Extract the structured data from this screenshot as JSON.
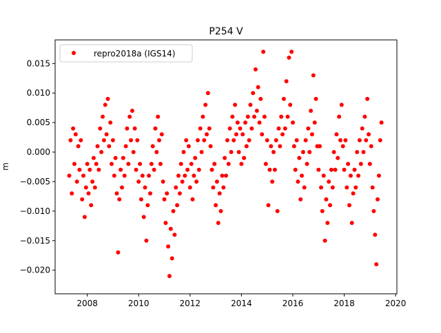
{
  "chart_data": {
    "type": "scatter",
    "title": "P254 V",
    "xlabel": "",
    "ylabel": "m",
    "xlim": [
      2006.75,
      2020.05
    ],
    "ylim": [
      -0.024,
      0.019
    ],
    "xticks": [
      2008,
      2010,
      2012,
      2014,
      2016,
      2018,
      2020
    ],
    "xtick_labels": [
      "2008",
      "2010",
      "2012",
      "2014",
      "2016",
      "2018",
      "2020"
    ],
    "yticks": [
      0.015,
      0.01,
      0.005,
      0.0,
      -0.005,
      -0.01,
      -0.015,
      -0.02
    ],
    "ytick_labels": [
      "0.015",
      "0.010",
      "0.005",
      "0.000",
      "−0.005",
      "−0.010",
      "−0.015",
      "−0.020"
    ],
    "grid": false,
    "legend_position": "top-left",
    "series": [
      {
        "name": "repro2018a (IGS14)",
        "color": "#ff0000",
        "marker": "circle",
        "points": [
          [
            2007.3,
            -0.004
          ],
          [
            2007.35,
            0.002
          ],
          [
            2007.4,
            -0.007
          ],
          [
            2007.45,
            0.004
          ],
          [
            2007.5,
            -0.002
          ],
          [
            2007.55,
            0.003
          ],
          [
            2007.6,
            -0.005
          ],
          [
            2007.65,
            0.001
          ],
          [
            2007.7,
            -0.003
          ],
          [
            2007.75,
            0.002
          ],
          [
            2007.8,
            -0.008
          ],
          [
            2007.85,
            -0.004
          ],
          [
            2007.9,
            -0.011
          ],
          [
            2007.95,
            -0.006
          ],
          [
            2008.0,
            -0.002
          ],
          [
            2008.05,
            -0.007
          ],
          [
            2008.1,
            -0.003
          ],
          [
            2008.15,
            -0.009
          ],
          [
            2008.2,
            -0.005
          ],
          [
            2008.25,
            -0.001
          ],
          [
            2008.3,
            -0.006
          ],
          [
            2008.35,
            -0.002
          ],
          [
            2008.4,
            0.001
          ],
          [
            2008.45,
            -0.003
          ],
          [
            2008.5,
            0.004
          ],
          [
            2008.55,
            0.0
          ],
          [
            2008.6,
            0.006
          ],
          [
            2008.65,
            0.002
          ],
          [
            2008.7,
            0.008
          ],
          [
            2008.75,
            0.003
          ],
          [
            2008.8,
            0.009
          ],
          [
            2008.85,
            0.001
          ],
          [
            2008.9,
            0.005
          ],
          [
            2008.95,
            -0.002
          ],
          [
            2009.0,
            0.002
          ],
          [
            2009.05,
            -0.004
          ],
          [
            2009.1,
            -0.001
          ],
          [
            2009.15,
            -0.007
          ],
          [
            2009.2,
            -0.017
          ],
          [
            2009.25,
            -0.008
          ],
          [
            2009.3,
            -0.003
          ],
          [
            2009.35,
            -0.006
          ],
          [
            2009.4,
            -0.001
          ],
          [
            2009.45,
            -0.004
          ],
          [
            2009.5,
            0.001
          ],
          [
            2009.55,
            0.004
          ],
          [
            2009.6,
            -0.002
          ],
          [
            2009.65,
            0.006
          ],
          [
            2009.7,
            0.002
          ],
          [
            2009.75,
            0.007
          ],
          [
            2009.8,
            0.0
          ],
          [
            2009.85,
            0.004
          ],
          [
            2009.9,
            -0.003
          ],
          [
            2009.95,
            0.002
          ],
          [
            2010.0,
            -0.005
          ],
          [
            2010.05,
            -0.002
          ],
          [
            2010.1,
            -0.008
          ],
          [
            2010.15,
            -0.004
          ],
          [
            2010.2,
            -0.011
          ],
          [
            2010.25,
            -0.006
          ],
          [
            2010.3,
            -0.015
          ],
          [
            2010.35,
            -0.009
          ],
          [
            2010.4,
            -0.004
          ],
          [
            2010.45,
            -0.007
          ],
          [
            2010.5,
            -0.002
          ],
          [
            2010.55,
            0.001
          ],
          [
            2010.6,
            -0.003
          ],
          [
            2010.65,
            0.004
          ],
          [
            2010.7,
            0.0
          ],
          [
            2010.75,
            0.006
          ],
          [
            2010.8,
            0.002
          ],
          [
            2010.85,
            -0.002
          ],
          [
            2010.9,
            0.003
          ],
          [
            2010.95,
            -0.005
          ],
          [
            2011.0,
            -0.008
          ],
          [
            2011.05,
            -0.012
          ],
          [
            2011.1,
            -0.007
          ],
          [
            2011.15,
            -0.016
          ],
          [
            2011.2,
            -0.021
          ],
          [
            2011.25,
            -0.013
          ],
          [
            2011.3,
            -0.018
          ],
          [
            2011.35,
            -0.01
          ],
          [
            2011.4,
            -0.014
          ],
          [
            2011.45,
            -0.006
          ],
          [
            2011.5,
            -0.009
          ],
          [
            2011.55,
            -0.004
          ],
          [
            2011.6,
            -0.007
          ],
          [
            2011.65,
            -0.002
          ],
          [
            2011.7,
            -0.005
          ],
          [
            2011.75,
            0.0
          ],
          [
            2011.8,
            -0.004
          ],
          [
            2011.85,
            0.002
          ],
          [
            2011.9,
            -0.003
          ],
          [
            2011.95,
            0.001
          ],
          [
            2012.0,
            -0.006
          ],
          [
            2012.05,
            -0.002
          ],
          [
            2012.1,
            -0.008
          ],
          [
            2012.15,
            -0.004
          ],
          [
            2012.2,
            -0.001
          ],
          [
            2012.25,
            -0.005
          ],
          [
            2012.3,
            0.002
          ],
          [
            2012.35,
            -0.003
          ],
          [
            2012.4,
            0.004
          ],
          [
            2012.45,
            0.0
          ],
          [
            2012.5,
            0.006
          ],
          [
            2012.55,
            0.002
          ],
          [
            2012.6,
            0.008
          ],
          [
            2012.65,
            0.003
          ],
          [
            2012.7,
            0.01
          ],
          [
            2012.75,
            0.004
          ],
          [
            2012.8,
            0.001
          ],
          [
            2012.85,
            -0.003
          ],
          [
            2012.9,
            -0.006
          ],
          [
            2012.95,
            -0.002
          ],
          [
            2013.0,
            -0.009
          ],
          [
            2013.05,
            -0.005
          ],
          [
            2013.1,
            -0.012
          ],
          [
            2013.15,
            -0.007
          ],
          [
            2013.2,
            -0.01
          ],
          [
            2013.25,
            -0.004
          ],
          [
            2013.3,
            -0.006
          ],
          [
            2013.35,
            -0.001
          ],
          [
            2013.4,
            -0.004
          ],
          [
            2013.45,
            0.002
          ],
          [
            2013.5,
            -0.002
          ],
          [
            2013.55,
            0.004
          ],
          [
            2013.6,
            0.0
          ],
          [
            2013.65,
            0.006
          ],
          [
            2013.7,
            0.002
          ],
          [
            2013.75,
            0.008
          ],
          [
            2013.8,
            0.003
          ],
          [
            2013.85,
            0.005
          ],
          [
            2013.9,
            0.0
          ],
          [
            2013.95,
            0.004
          ],
          [
            2014.0,
            -0.002
          ],
          [
            2014.05,
            0.003
          ],
          [
            2014.1,
            -0.001
          ],
          [
            2014.15,
            0.005
          ],
          [
            2014.2,
            0.001
          ],
          [
            2014.25,
            0.006
          ],
          [
            2014.3,
            0.002
          ],
          [
            2014.35,
            0.008
          ],
          [
            2014.4,
            0.004
          ],
          [
            2014.45,
            0.01
          ],
          [
            2014.5,
            0.006
          ],
          [
            2014.55,
            0.014
          ],
          [
            2014.6,
            0.007
          ],
          [
            2014.65,
            0.011
          ],
          [
            2014.7,
            0.005
          ],
          [
            2014.75,
            0.009
          ],
          [
            2014.8,
            0.003
          ],
          [
            2014.85,
            0.017
          ],
          [
            2014.9,
            0.006
          ],
          [
            2014.95,
            -0.002
          ],
          [
            2015.0,
            0.002
          ],
          [
            2015.05,
            -0.009
          ],
          [
            2015.1,
            -0.003
          ],
          [
            2015.15,
            0.001
          ],
          [
            2015.2,
            -0.005
          ],
          [
            2015.25,
            0.0
          ],
          [
            2015.3,
            -0.003
          ],
          [
            2015.35,
            0.002
          ],
          [
            2015.4,
            -0.01
          ],
          [
            2015.45,
            0.004
          ],
          [
            2015.5,
            0.001
          ],
          [
            2015.55,
            0.006
          ],
          [
            2015.6,
            0.003
          ],
          [
            2015.65,
            0.009
          ],
          [
            2015.7,
            0.004
          ],
          [
            2015.75,
            0.012
          ],
          [
            2015.8,
            0.006
          ],
          [
            2015.85,
            0.016
          ],
          [
            2015.9,
            0.008
          ],
          [
            2015.95,
            0.017
          ],
          [
            2016.0,
            0.005
          ],
          [
            2016.05,
            0.001
          ],
          [
            2016.1,
            -0.003
          ],
          [
            2016.15,
            0.002
          ],
          [
            2016.2,
            -0.005
          ],
          [
            2016.25,
            -0.001
          ],
          [
            2016.3,
            -0.008
          ],
          [
            2016.35,
            -0.004
          ],
          [
            2016.4,
            0.0
          ],
          [
            2016.45,
            -0.006
          ],
          [
            2016.5,
            0.002
          ],
          [
            2016.55,
            -0.002
          ],
          [
            2016.6,
            0.004
          ],
          [
            2016.65,
            0.0
          ],
          [
            2016.7,
            0.007
          ],
          [
            2016.75,
            0.003
          ],
          [
            2016.8,
            0.013
          ],
          [
            2016.85,
            0.005
          ],
          [
            2016.9,
            0.009
          ],
          [
            2016.95,
            0.001
          ],
          [
            2017.0,
            -0.003
          ],
          [
            2017.05,
            0.001
          ],
          [
            2017.1,
            -0.006
          ],
          [
            2017.15,
            -0.01
          ],
          [
            2017.2,
            -0.004
          ],
          [
            2017.25,
            -0.015
          ],
          [
            2017.3,
            -0.008
          ],
          [
            2017.35,
            -0.012
          ],
          [
            2017.4,
            -0.005
          ],
          [
            2017.45,
            -0.009
          ],
          [
            2017.5,
            -0.003
          ],
          [
            2017.55,
            -0.006
          ],
          [
            2017.6,
            0.0
          ],
          [
            2017.65,
            -0.003
          ],
          [
            2017.7,
            0.003
          ],
          [
            2017.75,
            -0.001
          ],
          [
            2017.8,
            0.006
          ],
          [
            2017.85,
            0.002
          ],
          [
            2017.9,
            0.008
          ],
          [
            2017.95,
            0.001
          ],
          [
            2018.0,
            -0.003
          ],
          [
            2018.05,
            0.002
          ],
          [
            2018.1,
            -0.006
          ],
          [
            2018.15,
            -0.002
          ],
          [
            2018.2,
            -0.009
          ],
          [
            2018.25,
            -0.004
          ],
          [
            2018.3,
            -0.012
          ],
          [
            2018.35,
            -0.007
          ],
          [
            2018.4,
            -0.003
          ],
          [
            2018.45,
            -0.006
          ],
          [
            2018.5,
            0.0
          ],
          [
            2018.55,
            -0.004
          ],
          [
            2018.6,
            0.002
          ],
          [
            2018.65,
            -0.002
          ],
          [
            2018.7,
            0.004
          ],
          [
            2018.75,
            0.0
          ],
          [
            2018.8,
            0.006
          ],
          [
            2018.85,
            0.002
          ],
          [
            2018.9,
            0.009
          ],
          [
            2018.95,
            0.003
          ],
          [
            2019.0,
            -0.002
          ],
          [
            2019.05,
            0.001
          ],
          [
            2019.1,
            -0.006
          ],
          [
            2019.15,
            -0.01
          ],
          [
            2019.2,
            -0.014
          ],
          [
            2019.25,
            -0.019
          ],
          [
            2019.3,
            -0.008
          ],
          [
            2019.35,
            -0.004
          ],
          [
            2019.4,
            0.002
          ],
          [
            2019.45,
            0.005
          ]
        ]
      }
    ]
  }
}
